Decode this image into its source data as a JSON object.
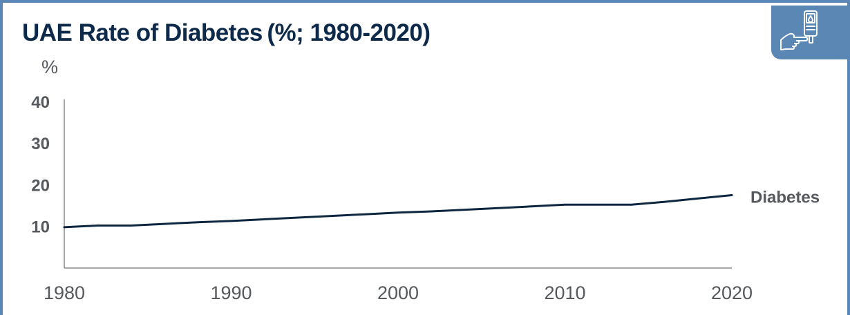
{
  "header": {
    "title": "UAE Rate of Diabetes (%; 1980-2020)",
    "icon": "glucose-meter-hand-icon",
    "icon_bg": "#5b87b4"
  },
  "colors": {
    "frame": "#5a87b5",
    "line": "#0d2740",
    "axis": "#888888",
    "text": "#55595d",
    "title": "#0d2a4a"
  },
  "chart_data": {
    "type": "line",
    "title": "UAE Rate of Diabetes (%; 1980-2020)",
    "ylabel": "%",
    "xlabel": "",
    "ylim": [
      0,
      40
    ],
    "xlim": [
      1980,
      2020
    ],
    "yticks": [
      10,
      20,
      30,
      40
    ],
    "xticks": [
      1980,
      1990,
      2000,
      2010,
      2020
    ],
    "grid": false,
    "legend": "none",
    "series": [
      {
        "name": "Diabetes",
        "x": [
          1980,
          1982,
          1984,
          1986,
          1988,
          1990,
          1992,
          1994,
          1996,
          1998,
          2000,
          2002,
          2004,
          2006,
          2008,
          2010,
          2012,
          2014,
          2016,
          2018,
          2020
        ],
        "values": [
          9.8,
          10.2,
          10.2,
          10.6,
          11.0,
          11.3,
          11.7,
          12.1,
          12.5,
          12.9,
          13.3,
          13.6,
          14.0,
          14.4,
          14.8,
          15.2,
          15.2,
          15.2,
          15.9,
          16.7,
          17.5
        ]
      }
    ]
  }
}
